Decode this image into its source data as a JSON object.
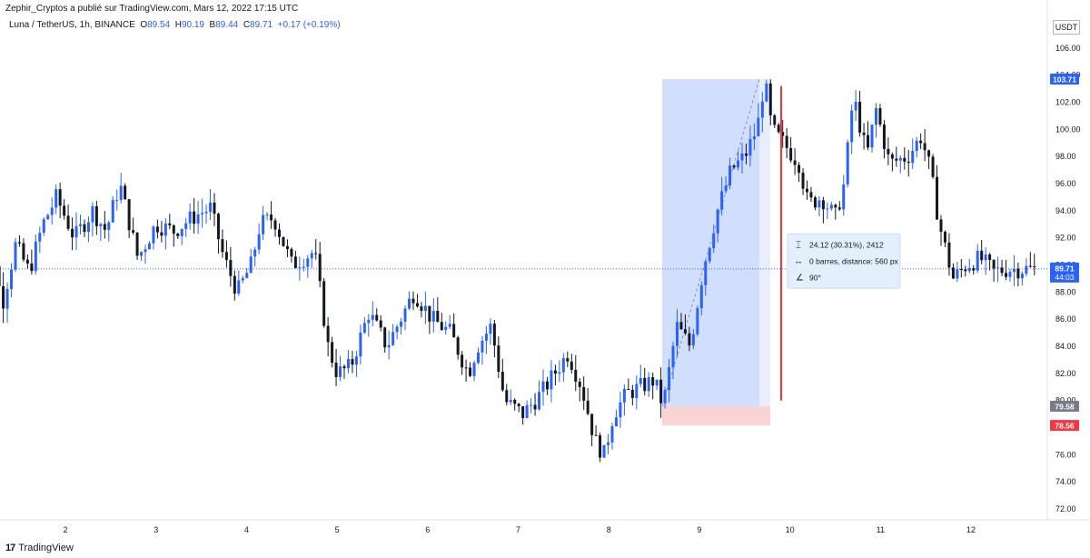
{
  "header": {
    "publisher": "Zephir_Cryptos a publié sur TradingView.com, Mars 12, 2022 17:15 UTC",
    "symbol": "Luna / TetherUS, 1h, BINANCE",
    "ohlc": {
      "o_label": "O",
      "o": "89.54",
      "h_label": "H",
      "h": "90.19",
      "b_label": "B",
      "b": "89.44",
      "c_label": "C",
      "c": "89.71",
      "change": "+0.17 (+0.19%)"
    },
    "currency": "USDT"
  },
  "footer": {
    "brand": "TradingView",
    "brand_icon": "tv-logo-icon"
  },
  "measure_box": {
    "line1": "24.12 (30.31%), 2412",
    "line2": "0 barres, distance: 560 px",
    "line3": "90°"
  },
  "price_tags": {
    "high": "103.71",
    "current": "89.71",
    "countdown": "44:03",
    "low": "79.58",
    "lower": "78.56"
  },
  "colors": {
    "up": "#2962ff",
    "down": "#131722",
    "range_fill": "#c9d8fb",
    "range_base": "#f9cfcf",
    "red_line": "#f23645",
    "current_tag": "#2962ff",
    "lower_tag": "#f23645",
    "gray_tag": "#787b86"
  },
  "chart_data": {
    "type": "candlestick",
    "ylim": [
      71.2,
      107.2
    ],
    "y_ticks": [
      "72.00",
      "74.00",
      "76.00",
      "78.00",
      "80.00",
      "82.00",
      "84.00",
      "86.00",
      "88.00",
      "90.00",
      "92.00",
      "94.00",
      "96.00",
      "98.00",
      "100.00",
      "102.00",
      "104.00",
      "106.00"
    ],
    "x_ticks": [
      {
        "label": "2",
        "day": 2
      },
      {
        "label": "3",
        "day": 3
      },
      {
        "label": "4",
        "day": 4
      },
      {
        "label": "5",
        "day": 5
      },
      {
        "label": "6",
        "day": 6
      },
      {
        "label": "7",
        "day": 7
      },
      {
        "label": "8",
        "day": 8
      },
      {
        "label": "9",
        "day": 9
      },
      {
        "label": "10",
        "day": 10
      },
      {
        "label": "11",
        "day": 11
      },
      {
        "label": "12",
        "day": 12
      }
    ],
    "current_price": 89.71,
    "range_high": 103.71,
    "range_low": 79.58,
    "range_lower": 78.56,
    "anchors": [
      [
        1.0,
        88.0
      ],
      [
        1.15,
        93.5
      ],
      [
        1.3,
        87.0
      ],
      [
        1.45,
        91.5
      ],
      [
        1.6,
        89.5
      ],
      [
        1.75,
        93.0
      ],
      [
        1.9,
        95.0
      ],
      [
        2.1,
        92.0
      ],
      [
        2.3,
        94.0
      ],
      [
        2.45,
        92.5
      ],
      [
        2.6,
        96.0
      ],
      [
        2.8,
        90.5
      ],
      [
        3.0,
        93.0
      ],
      [
        3.2,
        92.5
      ],
      [
        3.4,
        93.5
      ],
      [
        3.6,
        94.2
      ],
      [
        3.75,
        90.5
      ],
      [
        3.9,
        88.0
      ],
      [
        4.05,
        90.0
      ],
      [
        4.15,
        93.0
      ],
      [
        4.3,
        93.5
      ],
      [
        4.5,
        90.0
      ],
      [
        4.75,
        91.0
      ],
      [
        4.9,
        84.0
      ],
      [
        5.0,
        82.0
      ],
      [
        5.15,
        82.5
      ],
      [
        5.35,
        86.5
      ],
      [
        5.55,
        84.0
      ],
      [
        5.7,
        86.0
      ],
      [
        5.85,
        88.0
      ],
      [
        6.05,
        86.0
      ],
      [
        6.25,
        85.0
      ],
      [
        6.45,
        82.0
      ],
      [
        6.55,
        84.0
      ],
      [
        6.7,
        85.5
      ],
      [
        6.85,
        80.0
      ],
      [
        7.05,
        79.0
      ],
      [
        7.25,
        80.5
      ],
      [
        7.4,
        82.0
      ],
      [
        7.55,
        83.5
      ],
      [
        7.7,
        81.0
      ],
      [
        7.85,
        77.0
      ],
      [
        7.95,
        76.0
      ],
      [
        8.05,
        79.0
      ],
      [
        8.2,
        80.5
      ],
      [
        8.35,
        81.0
      ],
      [
        8.5,
        81.5
      ],
      [
        8.6,
        79.6
      ],
      [
        8.75,
        85.5
      ],
      [
        8.9,
        84.0
      ],
      [
        9.05,
        90.0
      ],
      [
        9.2,
        94.0
      ],
      [
        9.35,
        97.0
      ],
      [
        9.5,
        98.0
      ],
      [
        9.6,
        99.5
      ],
      [
        9.65,
        100.5
      ],
      [
        9.72,
        103.7
      ],
      [
        9.8,
        100.0
      ],
      [
        9.95,
        98.8
      ],
      [
        10.1,
        97.5
      ],
      [
        10.2,
        94.5
      ],
      [
        10.35,
        95.0
      ],
      [
        10.5,
        93.5
      ],
      [
        10.6,
        96.0
      ],
      [
        10.7,
        102.5
      ],
      [
        10.85,
        98.0
      ],
      [
        10.95,
        101.5
      ],
      [
        11.1,
        97.5
      ],
      [
        11.3,
        98.0
      ],
      [
        11.45,
        99.5
      ],
      [
        11.55,
        97.0
      ],
      [
        11.65,
        93.0
      ],
      [
        11.8,
        89.0
      ],
      [
        11.95,
        90.0
      ],
      [
        12.1,
        90.5
      ],
      [
        12.25,
        89.5
      ],
      [
        12.4,
        89.7
      ],
      [
        12.7,
        89.71
      ]
    ]
  }
}
